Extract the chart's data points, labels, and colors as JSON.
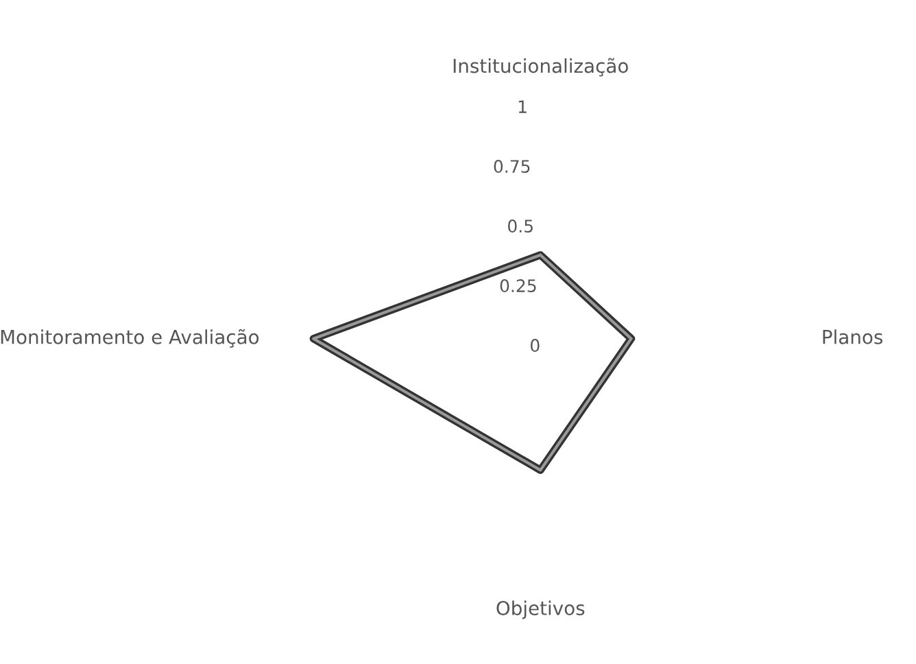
{
  "chart_data": {
    "type": "radar",
    "categories": [
      "Institucionalização",
      "Planos",
      "Objetivos",
      "Monitoramento e Avaliação"
    ],
    "series": [
      {
        "color": "#333333",
        "values": [
          0.35,
          0.38,
          0.55,
          0.95
        ]
      }
    ],
    "ylim": [
      0,
      1
    ],
    "yticks": [
      0,
      0.25,
      0.5,
      0.75,
      1
    ],
    "grid": false,
    "marker": "none",
    "line_style": "solid"
  }
}
